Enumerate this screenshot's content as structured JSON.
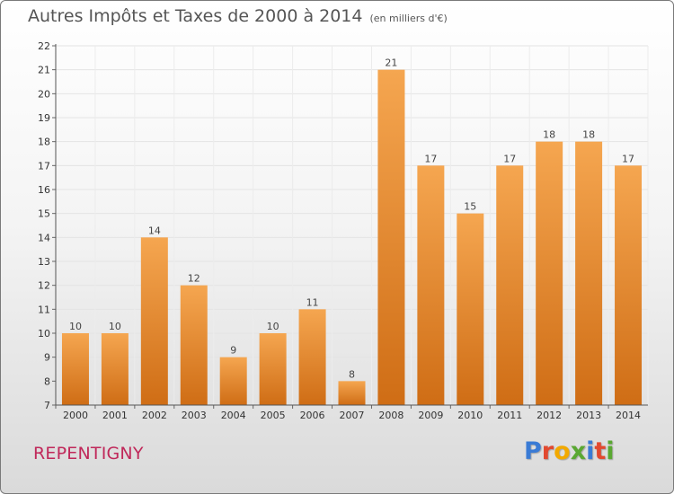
{
  "title": "Autres Impôts et Taxes de 2000 à 2014",
  "subtitle": "(en milliers d'€)",
  "city": "REPENTIGNY",
  "logo": {
    "text": "Proxiti",
    "colors": [
      "#3a7bd5",
      "#e2492f",
      "#f2a900",
      "#5aa832",
      "#3a7bd5",
      "#e2492f",
      "#5aa832"
    ]
  },
  "colors": {
    "bar_top": "#f5a650",
    "bar_bottom": "#cf6d15",
    "city": "#c0285a"
  },
  "chart_data": {
    "type": "bar",
    "title": "Autres Impôts et Taxes de 2000 à 2014",
    "subtitle": "(en milliers d'€)",
    "categories": [
      "2000",
      "2001",
      "2002",
      "2003",
      "2004",
      "2005",
      "2006",
      "2007",
      "2008",
      "2009",
      "2010",
      "2011",
      "2012",
      "2013",
      "2014"
    ],
    "values": [
      10,
      10,
      14,
      12,
      9,
      10,
      11,
      8,
      21,
      17,
      15,
      17,
      18,
      18,
      17
    ],
    "ylim": [
      7,
      22
    ],
    "yticks": [
      7,
      8,
      9,
      10,
      11,
      12,
      13,
      14,
      15,
      16,
      17,
      18,
      19,
      20,
      21,
      22
    ],
    "grid": true,
    "xlabel": "",
    "ylabel": ""
  }
}
